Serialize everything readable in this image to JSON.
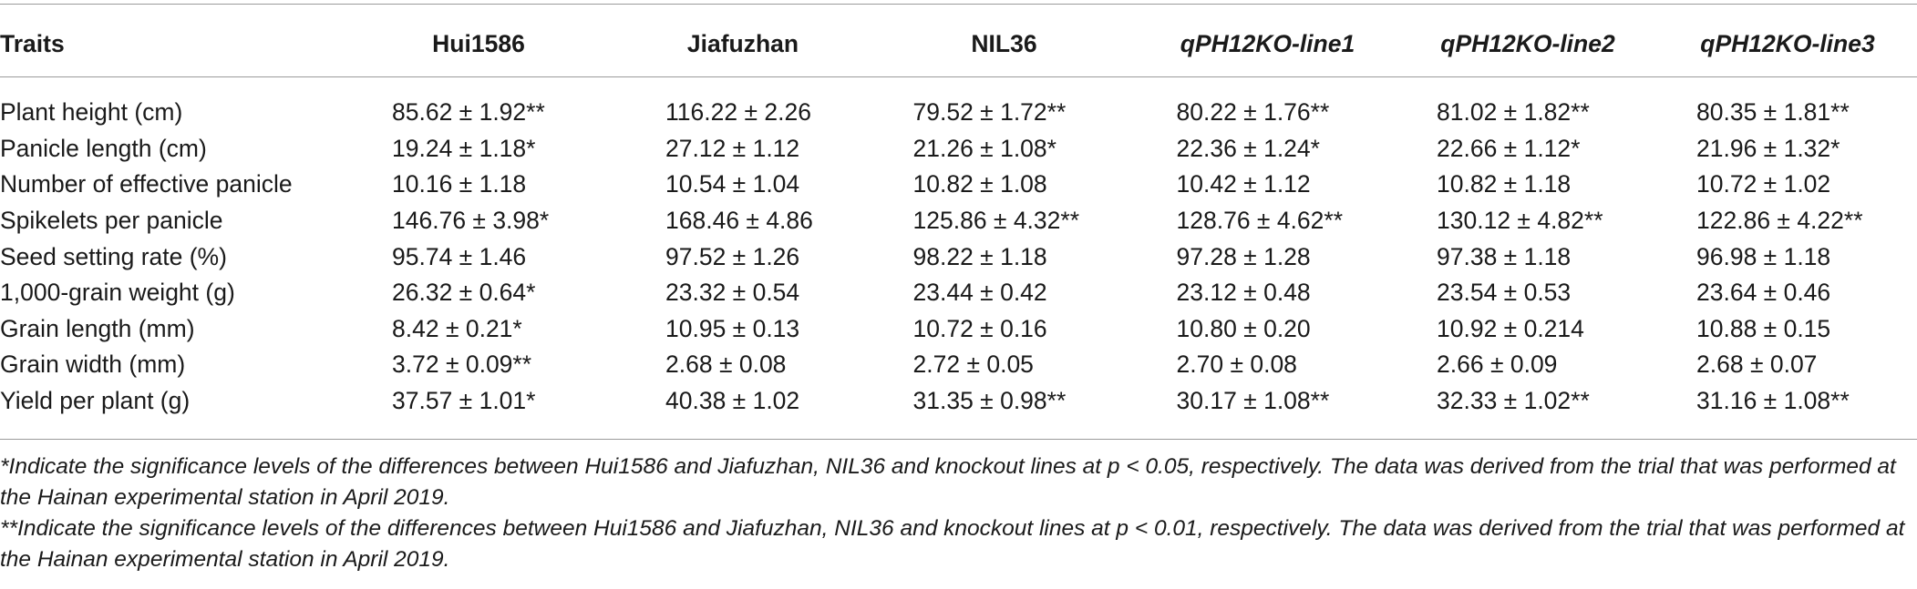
{
  "table": {
    "headers": [
      "Traits",
      "Hui1586",
      "Jiafuzhan",
      "NIL36",
      "qPH12KO-line1",
      "qPH12KO-line2",
      "qPH12KO-line3"
    ],
    "rows": [
      {
        "trait": "Plant height (cm)",
        "values": [
          "85.62 ± 1.92**",
          "116.22 ± 2.26",
          "79.52 ± 1.72**",
          "80.22 ± 1.76**",
          "81.02 ± 1.82**",
          "80.35 ± 1.81**"
        ]
      },
      {
        "trait": "Panicle length (cm)",
        "values": [
          "19.24 ± 1.18*",
          "27.12 ± 1.12",
          "21.26 ± 1.08*",
          "22.36 ± 1.24*",
          "22.66 ± 1.12*",
          "21.96 ± 1.32*"
        ]
      },
      {
        "trait": "Number of effective panicle",
        "values": [
          "10.16 ± 1.18",
          "10.54 ± 1.04",
          "10.82 ± 1.08",
          "10.42 ± 1.12",
          "10.82 ± 1.18",
          "10.72 ± 1.02"
        ]
      },
      {
        "trait": "Spikelets per panicle",
        "values": [
          "146.76 ± 3.98*",
          "168.46 ± 4.86",
          "125.86 ± 4.32**",
          "128.76 ± 4.62**",
          "130.12 ± 4.82**",
          "122.86 ± 4.22**"
        ]
      },
      {
        "trait": "Seed setting rate (%)",
        "values": [
          "95.74 ± 1.46",
          "97.52 ± 1.26",
          "98.22 ± 1.18",
          "97.28 ± 1.28",
          "97.38 ± 1.18",
          "96.98 ± 1.18"
        ]
      },
      {
        "trait": "1,000-grain weight (g)",
        "values": [
          "26.32 ± 0.64*",
          "23.32 ± 0.54",
          "23.44 ± 0.42",
          "23.12 ± 0.48",
          "23.54 ± 0.53",
          "23.64 ± 0.46"
        ]
      },
      {
        "trait": "Grain length (mm)",
        "values": [
          "8.42 ± 0.21*",
          "10.95 ± 0.13",
          "10.72 ± 0.16",
          "10.80 ± 0.20",
          "10.92 ± 0.214",
          "10.88 ± 0.15"
        ]
      },
      {
        "trait": "Grain width (mm)",
        "values": [
          "3.72 ± 0.09**",
          "2.68 ± 0.08",
          "2.72 ± 0.05",
          "2.70 ± 0.08",
          "2.66 ± 0.09",
          "2.68 ± 0.07"
        ]
      },
      {
        "trait": "Yield per plant (g)",
        "values": [
          "37.57 ± 1.01*",
          "40.38 ± 1.02",
          "31.35 ± 0.98**",
          "30.17 ± 1.08**",
          "32.33 ± 1.02**",
          "31.16 ± 1.08**"
        ]
      }
    ]
  },
  "footnotes": [
    "*Indicate the significance levels of the differences between Hui1586 and Jiafuzhan, NIL36 and knockout lines at p < 0.05, respectively. The data was derived from the trial that was performed at the Hainan experimental station in April 2019.",
    "**Indicate the significance levels of the differences between Hui1586 and Jiafuzhan, NIL36 and knockout lines at p < 0.01, respectively. The data was derived from the trial that was performed at the Hainan experimental station in April 2019."
  ]
}
